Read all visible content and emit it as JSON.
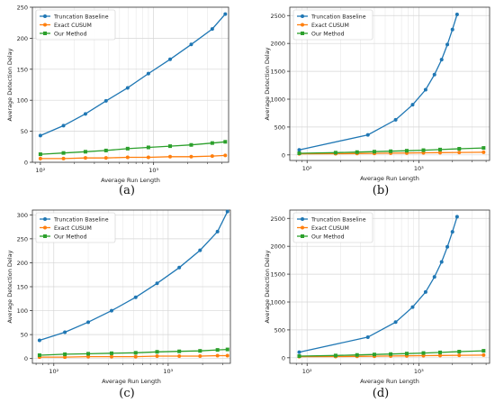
{
  "chart_data": [
    {
      "type": "line",
      "caption": "(a)",
      "xlabel": "Average Run Length",
      "ylabel": "Average Detection Delay",
      "xscale": "log",
      "xlim": [
        85,
        4600
      ],
      "ylim": [
        0,
        250
      ],
      "yticks": [
        0,
        50,
        100,
        150,
        200,
        250
      ],
      "xticks": [
        100,
        1000
      ],
      "xtick_labels": [
        "10²",
        "10³"
      ],
      "grid": true,
      "legend_position": "top-left",
      "series": [
        {
          "name": "Truncation Baseline",
          "color": "#1f77b4",
          "marker": "circle",
          "x": [
            100,
            160,
            250,
            380,
            590,
            900,
            1400,
            2150,
            3300,
            4300
          ],
          "y": [
            43,
            59,
            78,
            99,
            120,
            143,
            166,
            190,
            215,
            239
          ]
        },
        {
          "name": "Exact CUSUM",
          "color": "#ff7f0e",
          "marker": "circle",
          "x": [
            100,
            160,
            250,
            380,
            590,
            900,
            1400,
            2150,
            3300,
            4300
          ],
          "y": [
            6,
            6,
            7,
            7,
            8,
            8,
            9,
            9,
            10,
            11
          ]
        },
        {
          "name": "Our Method",
          "color": "#2ca02c",
          "marker": "square",
          "x": [
            100,
            160,
            250,
            380,
            590,
            900,
            1400,
            2150,
            3300,
            4300
          ],
          "y": [
            13,
            15,
            17,
            19,
            22,
            24,
            26,
            28,
            31,
            33
          ]
        }
      ]
    },
    {
      "type": "line",
      "caption": "(b)",
      "xlabel": "Average Run Length",
      "ylabel": "Average Detection Delay",
      "xscale": "log",
      "xlim": [
        70,
        4300
      ],
      "ylim": [
        -100,
        2650
      ],
      "yticks": [
        0,
        500,
        1000,
        1500,
        2000,
        2500
      ],
      "xticks": [
        100,
        1000
      ],
      "xtick_labels": [
        "10²",
        "10³"
      ],
      "grid": true,
      "legend_position": "top-left",
      "series": [
        {
          "name": "Truncation Baseline",
          "color": "#1f77b4",
          "marker": "circle",
          "x": [
            85,
            350,
            620,
            880,
            1150,
            1380,
            1600,
            1800,
            2000,
            2200
          ],
          "y": [
            90,
            360,
            630,
            900,
            1170,
            1440,
            1710,
            1980,
            2250,
            2520
          ]
        },
        {
          "name": "Exact CUSUM",
          "color": "#ff7f0e",
          "marker": "circle",
          "x": [
            85,
            180,
            280,
            400,
            560,
            780,
            1100,
            1550,
            2300,
            3800
          ],
          "y": [
            20,
            22,
            25,
            28,
            31,
            34,
            37,
            40,
            44,
            48
          ]
        },
        {
          "name": "Our Method",
          "color": "#2ca02c",
          "marker": "square",
          "x": [
            85,
            180,
            280,
            400,
            560,
            780,
            1100,
            1550,
            2300,
            3800
          ],
          "y": [
            30,
            40,
            50,
            58,
            66,
            75,
            85,
            96,
            110,
            125
          ]
        }
      ]
    },
    {
      "type": "line",
      "caption": "(c)",
      "xlabel": "Average Run Length",
      "ylabel": "Average Detection Delay",
      "xscale": "log",
      "xlim": [
        65,
        3500
      ],
      "ylim": [
        -10,
        310
      ],
      "yticks": [
        0,
        50,
        100,
        150,
        200,
        250,
        300
      ],
      "xticks": [
        100,
        1000
      ],
      "xtick_labels": [
        "10²",
        "10³"
      ],
      "grid": true,
      "legend_position": "top-left",
      "series": [
        {
          "name": "Truncation Baseline",
          "color": "#1f77b4",
          "marker": "circle",
          "x": [
            75,
            125,
            200,
            320,
            520,
            800,
            1250,
            1900,
            2700,
            3300
          ],
          "y": [
            38,
            55,
            76,
            100,
            128,
            157,
            190,
            226,
            265,
            307
          ]
        },
        {
          "name": "Exact CUSUM",
          "color": "#ff7f0e",
          "marker": "circle",
          "x": [
            75,
            125,
            200,
            320,
            520,
            800,
            1250,
            1900,
            2700,
            3300
          ],
          "y": [
            3,
            3,
            4,
            4,
            4,
            5,
            5,
            5,
            6,
            6
          ]
        },
        {
          "name": "Our Method",
          "color": "#2ca02c",
          "marker": "square",
          "x": [
            75,
            125,
            200,
            320,
            520,
            800,
            1250,
            1900,
            2700,
            3300
          ],
          "y": [
            7,
            9,
            10,
            11,
            12,
            14,
            15,
            16,
            18,
            19
          ]
        }
      ]
    },
    {
      "type": "line",
      "caption": "(d)",
      "xlabel": "Average Run Length",
      "ylabel": "Average Detection Delay",
      "xscale": "log",
      "xlim": [
        70,
        4300
      ],
      "ylim": [
        -100,
        2650
      ],
      "yticks": [
        0,
        500,
        1000,
        1500,
        2000,
        2500
      ],
      "xticks": [
        100,
        1000
      ],
      "xtick_labels": [
        "10²",
        "10³"
      ],
      "grid": true,
      "legend_position": "top-left",
      "series": [
        {
          "name": "Truncation Baseline",
          "color": "#1f77b4",
          "marker": "circle",
          "x": [
            85,
            350,
            620,
            880,
            1150,
            1380,
            1600,
            1800,
            2000,
            2200
          ],
          "y": [
            100,
            370,
            640,
            910,
            1180,
            1450,
            1720,
            1990,
            2260,
            2530
          ]
        },
        {
          "name": "Exact CUSUM",
          "color": "#ff7f0e",
          "marker": "circle",
          "x": [
            85,
            180,
            280,
            400,
            560,
            780,
            1100,
            1550,
            2300,
            3800
          ],
          "y": [
            20,
            22,
            25,
            28,
            31,
            34,
            37,
            40,
            44,
            48
          ]
        },
        {
          "name": "Our Method",
          "color": "#2ca02c",
          "marker": "square",
          "x": [
            85,
            180,
            280,
            400,
            560,
            780,
            1100,
            1550,
            2300,
            3800
          ],
          "y": [
            30,
            40,
            50,
            58,
            66,
            75,
            85,
            96,
            110,
            125
          ]
        }
      ]
    }
  ]
}
